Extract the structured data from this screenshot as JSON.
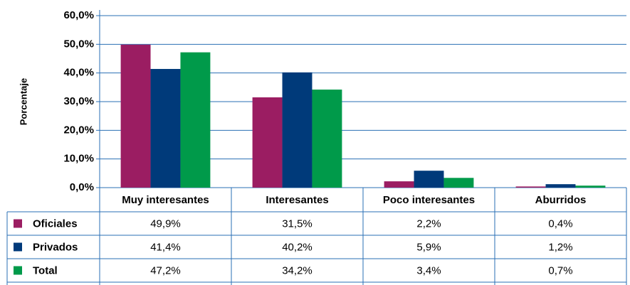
{
  "chart_data": {
    "type": "bar",
    "y_axis_label": "Porcentaje",
    "categories": [
      "Muy interesantes",
      "Interesantes",
      "Poco interesantes",
      "Aburridos"
    ],
    "series": [
      {
        "name": "Oficiales",
        "color": "#9b1d62",
        "values": [
          49.9,
          31.5,
          2.2,
          0.4
        ],
        "value_labels": [
          "49,9%",
          "31,5%",
          "2,2%",
          "0,4%"
        ]
      },
      {
        "name": "Privados",
        "color": "#003a7a",
        "values": [
          41.4,
          40.2,
          5.9,
          1.2
        ],
        "value_labels": [
          "41,4%",
          "40,2%",
          "5,9%",
          "1,2%"
        ]
      },
      {
        "name": "Total",
        "color": "#009a4a",
        "values": [
          47.2,
          34.2,
          3.4,
          0.7
        ],
        "value_labels": [
          "47,2%",
          "34,2%",
          "3,4%",
          "0,7%"
        ]
      }
    ],
    "ylim": [
      0,
      60
    ],
    "yticks": [
      {
        "value": 0,
        "label": "0,0%"
      },
      {
        "value": 10,
        "label": "10,0%"
      },
      {
        "value": 20,
        "label": "20,0%"
      },
      {
        "value": 30,
        "label": "30,0%"
      },
      {
        "value": 40,
        "label": "40,0%"
      },
      {
        "value": 50,
        "label": "50,0%"
      },
      {
        "value": 60,
        "label": "60,0%"
      }
    ],
    "grid": true
  }
}
